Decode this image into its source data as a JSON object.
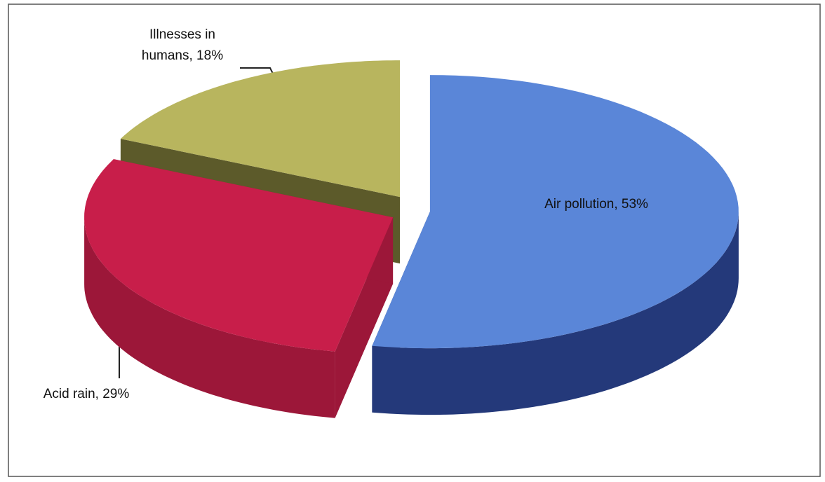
{
  "chart_data": {
    "type": "pie",
    "values": [
      53,
      29,
      18
    ],
    "value_labels": [
      "Air pollution, 53%",
      "Acid rain, 29%",
      "Illnesses in humans, 18%"
    ],
    "colors": [
      "#5a86d8",
      "#c81e4a",
      "#b8b55e"
    ],
    "side_colors": [
      "#24397a",
      "#9c1739",
      "#5c5a2a"
    ]
  }
}
